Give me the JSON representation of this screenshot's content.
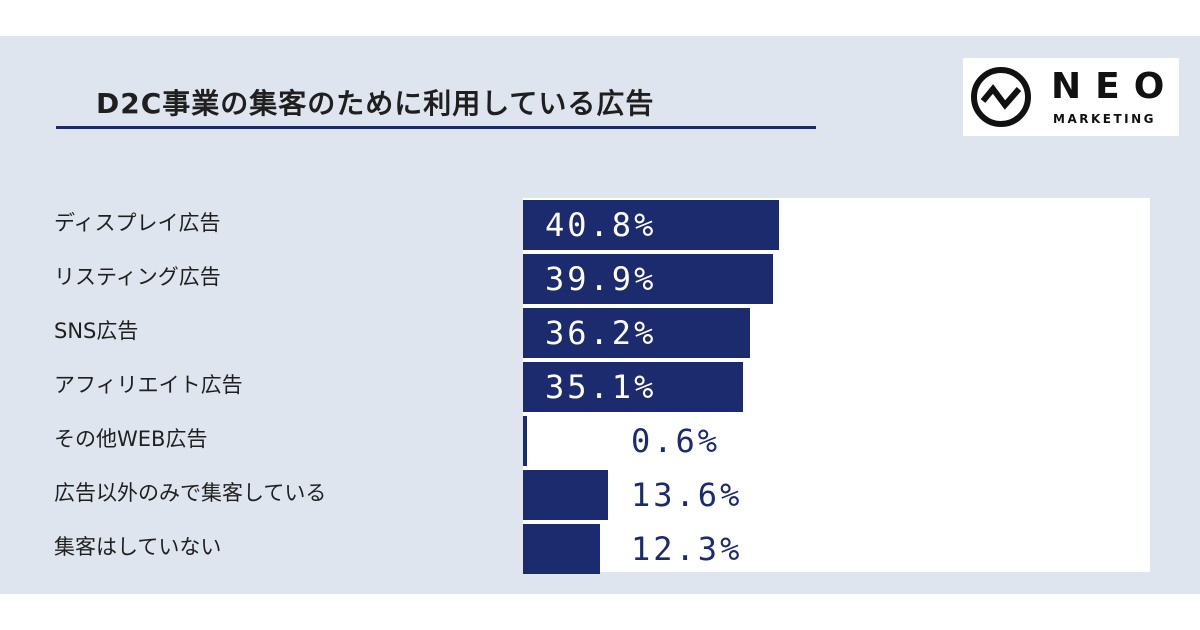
{
  "chart_data": {
    "type": "bar",
    "orientation": "horizontal",
    "title": "D2C事業の集客のために利用している広告",
    "categories": [
      "ディスプレイ広告",
      "リスティング広告",
      "SNS広告",
      "アフィリエイト広告",
      "その他WEB広告",
      "広告以外のみで集客している",
      "集客はしていない"
    ],
    "values": [
      40.8,
      39.9,
      36.2,
      35.1,
      0.6,
      13.6,
      12.3
    ],
    "value_labels": [
      "40.8%",
      "39.9%",
      "36.2%",
      "35.1%",
      "0.6%",
      "13.6%",
      "12.3%"
    ],
    "unit": "%",
    "xlim": [
      0,
      100
    ],
    "grid": false,
    "legend": "none",
    "bar_color": "#1c2a6e"
  },
  "logo": {
    "name": "NEO",
    "subtitle": "MARKETING",
    "icon": "neo-wave-circle-icon"
  },
  "colors": {
    "background_panel": "#dfe5ef",
    "accent": "#1c2a6e"
  }
}
